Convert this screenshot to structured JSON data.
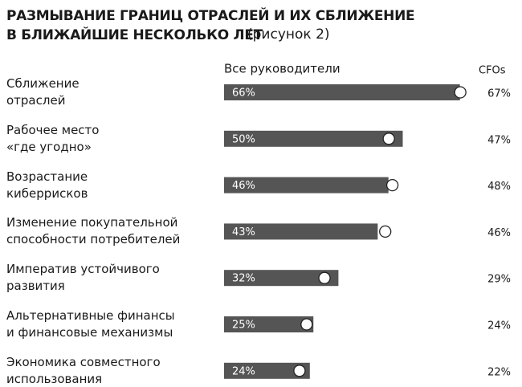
{
  "chart_data": {
    "type": "bar-dot",
    "title": "Размывание границ отраслей и их сближение\nв ближайшие несколько лет",
    "title_note": "(рисунок 2)",
    "categories": [
      "Сближение\nотраслей",
      "Рабочее место\n«где угодно»",
      "Возрастание\nкиберрисков",
      "Изменение покупательной\nспособности потребителей",
      "Императив устойчивого\nразвития",
      "Альтернативные финансы\nи финансовые механизмы",
      "Экономика совместного\nиспользования"
    ],
    "series": [
      {
        "name": "Все руководители",
        "color": "#555555",
        "values": [
          66,
          50,
          46,
          43,
          32,
          25,
          24
        ],
        "value_labels": [
          "66%",
          "50%",
          "46%",
          "43%",
          "32%",
          "25%",
          "24%"
        ]
      },
      {
        "name": "CFOs",
        "color": "#ffffff",
        "values": [
          67,
          47,
          48,
          46,
          29,
          24,
          22
        ],
        "value_labels": [
          "67%",
          "47%",
          "48%",
          "46%",
          "29%",
          "24%",
          "22%"
        ]
      }
    ]
  }
}
